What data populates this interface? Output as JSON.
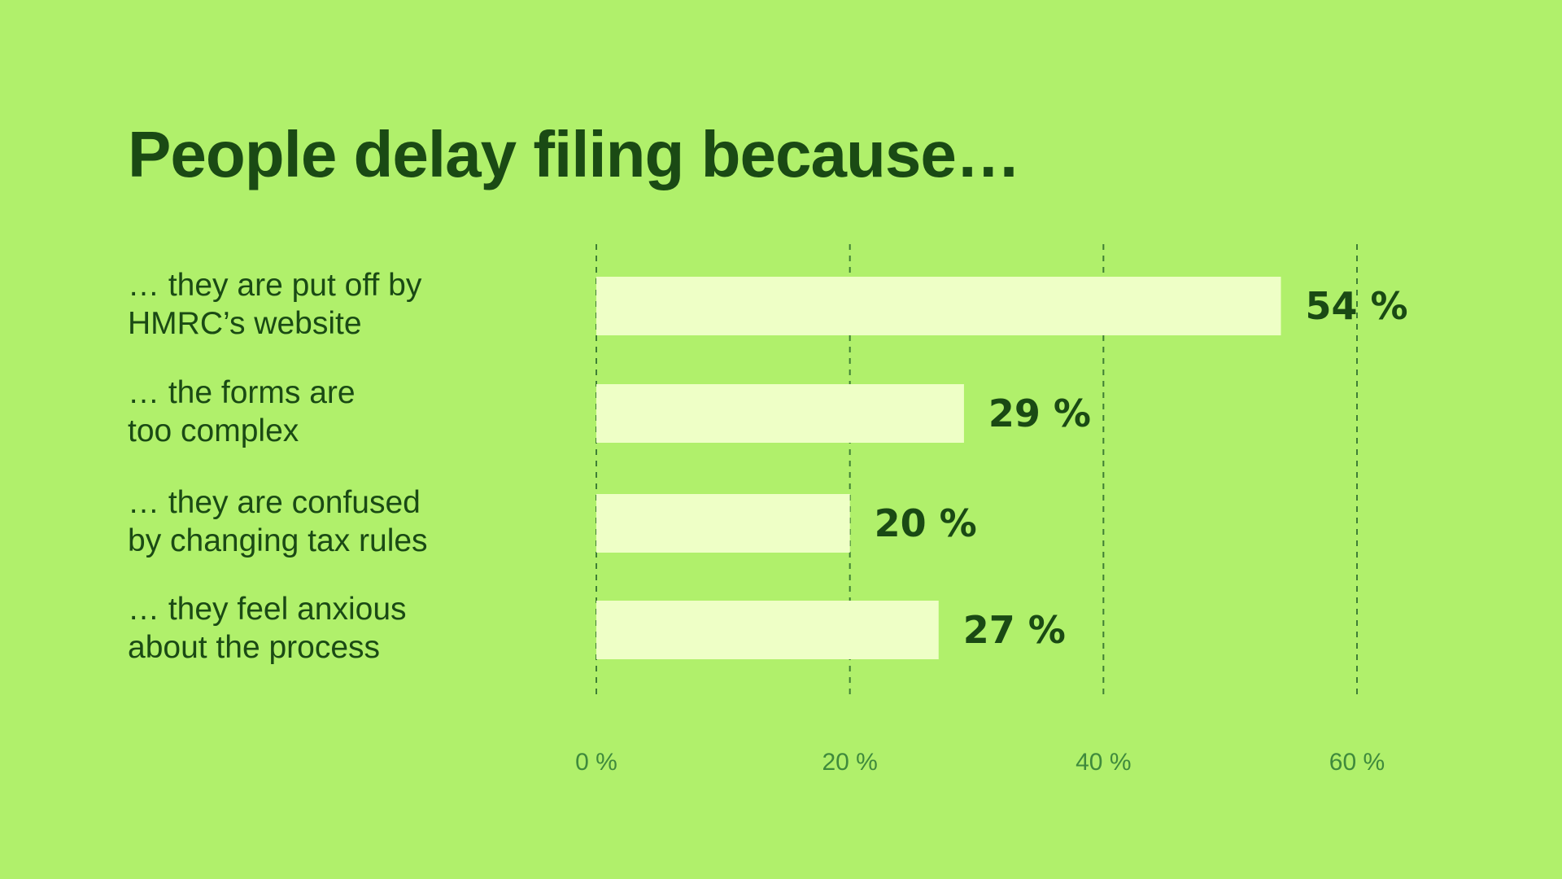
{
  "colors": {
    "background": "#b0f06b",
    "bar": "#eeffc6",
    "text": "#1a4a14",
    "grid": "#3f7f35",
    "tick": "#3f8a3c"
  },
  "chart_data": {
    "type": "bar",
    "orientation": "horizontal",
    "title": "People delay filing because…",
    "categories": [
      [
        "… they are put off by",
        "HMRC’s website"
      ],
      [
        "… the forms are",
        "too complex"
      ],
      [
        "… they are confused",
        "by changing tax rules"
      ],
      [
        "… they feel anxious",
        "about the process"
      ]
    ],
    "values": [
      54,
      29,
      20,
      27
    ],
    "value_labels": [
      "54 %",
      "29 %",
      "20 %",
      "27 %"
    ],
    "xlim": [
      0,
      60
    ],
    "x_ticks": [
      0,
      20,
      40,
      60
    ],
    "x_tick_labels": [
      "0 %",
      "20 %",
      "40 %",
      "60 %"
    ],
    "grid": "vertical-dashed",
    "legend": "none"
  }
}
